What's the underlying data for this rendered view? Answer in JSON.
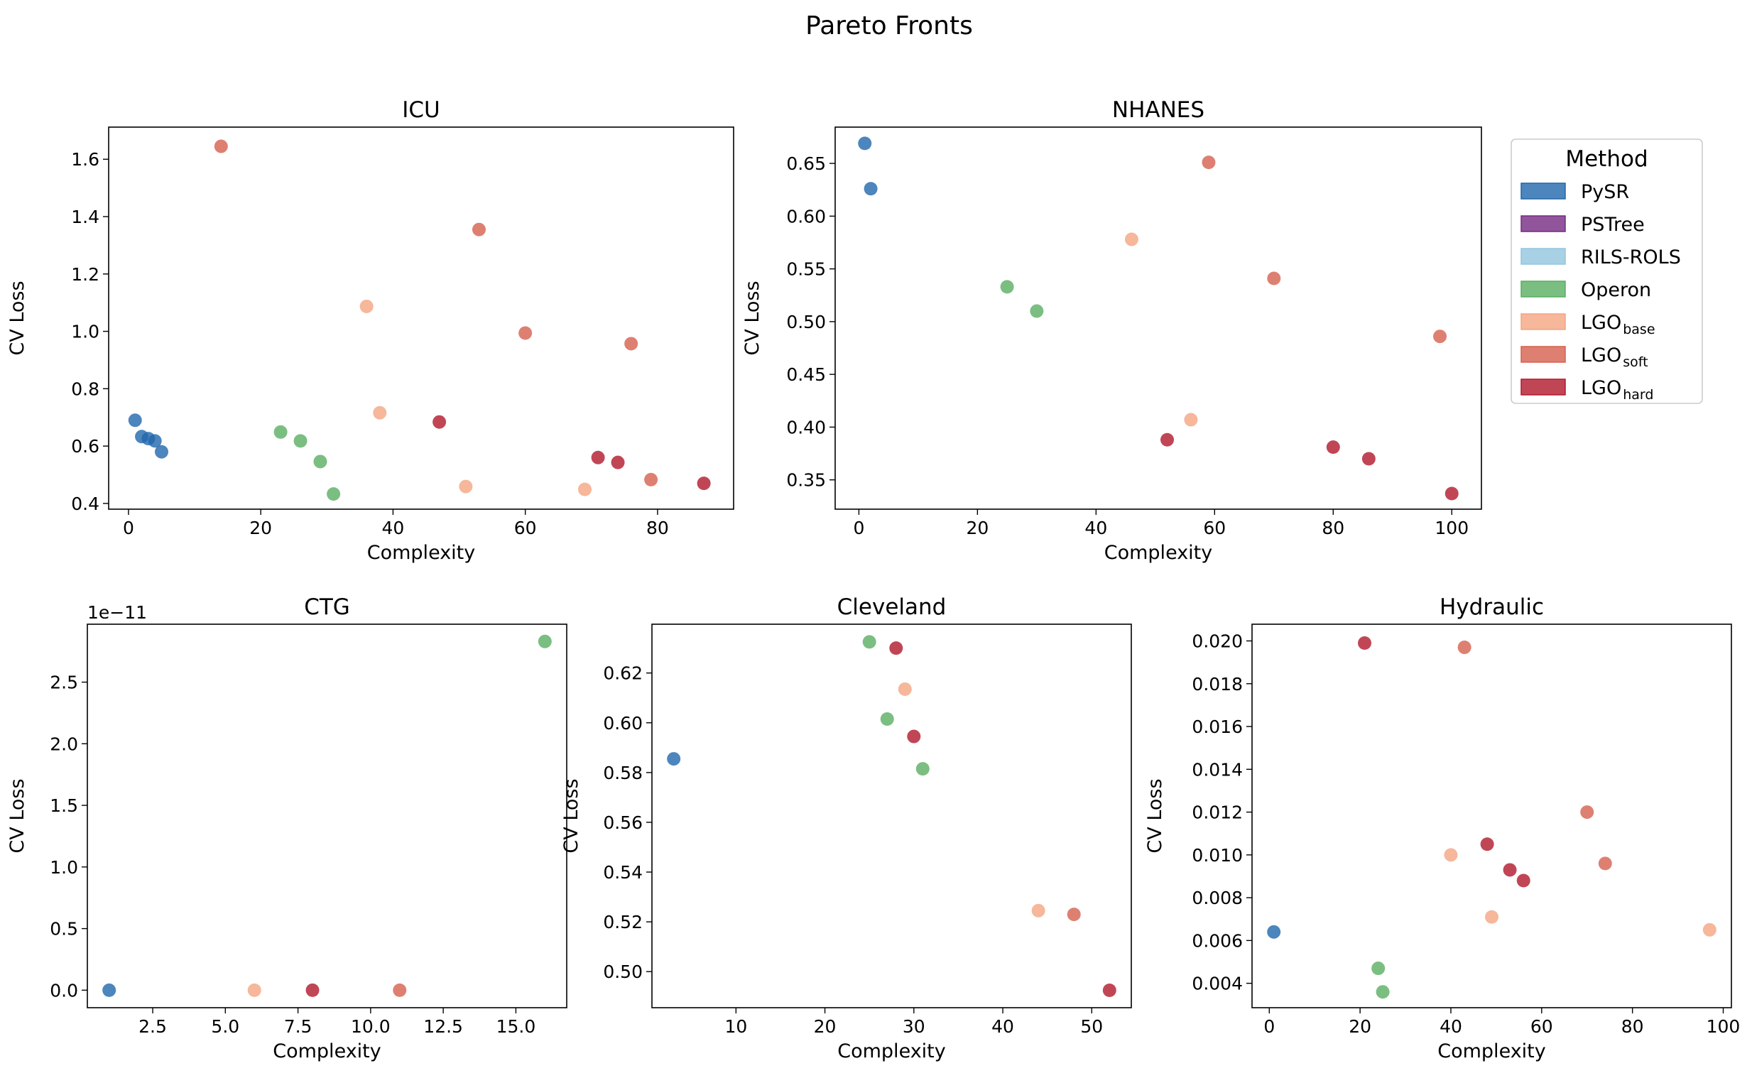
{
  "figure": {
    "title": "Pareto Fronts"
  },
  "legend": {
    "title": "Method",
    "placement": "right of NHANES panel",
    "entries": [
      {
        "key": "PySR",
        "base": "PySR",
        "sub": "",
        "color": "#2166ac"
      },
      {
        "key": "PSTree",
        "base": "PSTree",
        "sub": "",
        "color": "#762a83"
      },
      {
        "key": "RILS-ROLS",
        "base": "RILS-ROLS",
        "sub": "",
        "color": "#92c5de"
      },
      {
        "key": "Operon",
        "base": "Operon",
        "sub": "",
        "color": "#5aae61"
      },
      {
        "key": "LGO_base",
        "base": "LGO",
        "sub": "base",
        "color": "#f4a582"
      },
      {
        "key": "LGO_soft",
        "base": "LGO",
        "sub": "soft",
        "color": "#d6604d"
      },
      {
        "key": "LGO_hard",
        "base": "LGO",
        "sub": "hard",
        "color": "#b2182b"
      }
    ]
  },
  "chart_data": [
    {
      "type": "scatter",
      "title": "ICU",
      "xlabel": "Complexity",
      "ylabel": "CV Loss",
      "xlim": [
        -3,
        91.5
      ],
      "ylim": [
        0.38,
        1.712
      ],
      "xticks": [
        0,
        20,
        40,
        60,
        80
      ],
      "yticks": [
        0.4,
        0.6,
        0.8,
        1.0,
        1.2,
        1.4,
        1.6
      ],
      "yticklabels": [
        "0.4",
        "0.6",
        "0.8",
        "1.0",
        "1.2",
        "1.4",
        "1.6"
      ],
      "offset_text": "",
      "grid": false,
      "series": [
        {
          "name": "PySR",
          "points": [
            [
              1,
              0.69
            ],
            [
              2,
              0.633
            ],
            [
              3,
              0.626
            ],
            [
              4,
              0.618
            ],
            [
              5,
              0.58
            ]
          ]
        },
        {
          "name": "Operon",
          "points": [
            [
              23,
              0.649
            ],
            [
              26,
              0.618
            ],
            [
              29,
              0.546
            ],
            [
              31,
              0.433
            ]
          ]
        },
        {
          "name": "LGO_base",
          "points": [
            [
              36,
              1.087
            ],
            [
              38,
              0.716
            ],
            [
              51,
              0.459
            ],
            [
              69,
              0.449
            ]
          ]
        },
        {
          "name": "LGO_soft",
          "points": [
            [
              14,
              1.645
            ],
            [
              53,
              1.355
            ],
            [
              60,
              0.994
            ],
            [
              76,
              0.957
            ],
            [
              79,
              0.483
            ]
          ]
        },
        {
          "name": "LGO_hard",
          "points": [
            [
              47,
              0.684
            ],
            [
              71,
              0.56
            ],
            [
              74,
              0.543
            ],
            [
              87,
              0.47
            ]
          ]
        }
      ]
    },
    {
      "type": "scatter",
      "title": "NHANES",
      "xlabel": "Complexity",
      "ylabel": "CV Loss",
      "xlim": [
        -4,
        105
      ],
      "ylim": [
        0.3222,
        0.6844
      ],
      "xticks": [
        0,
        20,
        40,
        60,
        80,
        100
      ],
      "yticks": [
        0.35,
        0.4,
        0.45,
        0.5,
        0.55,
        0.6,
        0.65
      ],
      "yticklabels": [
        "0.35",
        "0.40",
        "0.45",
        "0.50",
        "0.55",
        "0.60",
        "0.65"
      ],
      "offset_text": "",
      "grid": false,
      "series": [
        {
          "name": "PySR",
          "points": [
            [
              1,
              0.669
            ],
            [
              2,
              0.626
            ]
          ]
        },
        {
          "name": "Operon",
          "points": [
            [
              25,
              0.533
            ],
            [
              30,
              0.51
            ]
          ]
        },
        {
          "name": "LGO_base",
          "points": [
            [
              46,
              0.578
            ],
            [
              56,
              0.407
            ]
          ]
        },
        {
          "name": "LGO_soft",
          "points": [
            [
              59,
              0.651
            ],
            [
              70,
              0.541
            ],
            [
              98,
              0.486
            ]
          ]
        },
        {
          "name": "LGO_hard",
          "points": [
            [
              52,
              0.388
            ],
            [
              80,
              0.381
            ],
            [
              86,
              0.37
            ],
            [
              100,
              0.337
            ]
          ]
        }
      ]
    },
    {
      "type": "scatter",
      "title": "CTG",
      "xlabel": "Complexity",
      "ylabel": "CV Loss",
      "xlim": [
        0.25,
        16.75
      ],
      "ylim": [
        -0.142,
        2.97
      ],
      "xticks": [
        2.5,
        5.0,
        7.5,
        10.0,
        12.5,
        15.0
      ],
      "xticklabels": [
        "2.5",
        "5.0",
        "7.5",
        "10.0",
        "12.5",
        "15.0"
      ],
      "yticks": [
        0.0,
        0.5,
        1.0,
        1.5,
        2.0,
        2.5
      ],
      "yticklabels": [
        "0.0",
        "0.5",
        "1.0",
        "1.5",
        "2.0",
        "2.5"
      ],
      "offset_text": "1e−11",
      "grid": false,
      "series": [
        {
          "name": "PySR",
          "points": [
            [
              1,
              0.0
            ]
          ]
        },
        {
          "name": "Operon",
          "points": [
            [
              16,
              2.83
            ]
          ]
        },
        {
          "name": "LGO_base",
          "points": [
            [
              6,
              0.0
            ]
          ]
        },
        {
          "name": "LGO_soft",
          "points": [
            [
              11,
              0.0
            ]
          ]
        },
        {
          "name": "LGO_hard",
          "points": [
            [
              8,
              0.0
            ]
          ]
        }
      ]
    },
    {
      "type": "scatter",
      "title": "Cleveland",
      "xlabel": "Complexity",
      "ylabel": "CV Loss",
      "xlim": [
        0.55,
        54.45
      ],
      "ylim": [
        0.4855,
        0.6396
      ],
      "xticks": [
        10,
        20,
        30,
        40,
        50
      ],
      "yticks": [
        0.5,
        0.52,
        0.54,
        0.56,
        0.58,
        0.6,
        0.62
      ],
      "yticklabels": [
        "0.50",
        "0.52",
        "0.54",
        "0.56",
        "0.58",
        "0.60",
        "0.62"
      ],
      "offset_text": "",
      "grid": false,
      "series": [
        {
          "name": "PySR",
          "points": [
            [
              3,
              0.5855
            ]
          ]
        },
        {
          "name": "Operon",
          "points": [
            [
              25,
              0.6325
            ],
            [
              27,
              0.6015
            ],
            [
              31,
              0.5815
            ]
          ]
        },
        {
          "name": "LGO_base",
          "points": [
            [
              29,
              0.6135
            ],
            [
              44,
              0.5245
            ]
          ]
        },
        {
          "name": "LGO_soft",
          "points": [
            [
              48,
              0.523
            ]
          ]
        },
        {
          "name": "LGO_hard",
          "points": [
            [
              28,
              0.63
            ],
            [
              30,
              0.5945
            ],
            [
              52,
              0.4925
            ]
          ]
        }
      ]
    },
    {
      "type": "scatter",
      "title": "Hydraulic",
      "xlabel": "Complexity",
      "ylabel": "CV Loss",
      "xlim": [
        -3.8,
        101.8
      ],
      "ylim": [
        0.00286,
        0.02078
      ],
      "xticks": [
        0,
        20,
        40,
        60,
        80,
        100
      ],
      "yticks": [
        0.004,
        0.006,
        0.008,
        0.01,
        0.012,
        0.014,
        0.016,
        0.018,
        0.02
      ],
      "yticklabels": [
        "0.004",
        "0.006",
        "0.008",
        "0.010",
        "0.012",
        "0.014",
        "0.016",
        "0.018",
        "0.020"
      ],
      "offset_text": "",
      "grid": false,
      "series": [
        {
          "name": "PySR",
          "points": [
            [
              1,
              0.0064
            ]
          ]
        },
        {
          "name": "Operon",
          "points": [
            [
              24,
              0.0047
            ],
            [
              25,
              0.0036
            ]
          ]
        },
        {
          "name": "LGO_base",
          "points": [
            [
              40,
              0.01
            ],
            [
              49,
              0.0071
            ],
            [
              97,
              0.0065
            ]
          ]
        },
        {
          "name": "LGO_soft",
          "points": [
            [
              43,
              0.0197
            ],
            [
              70,
              0.012
            ],
            [
              74,
              0.0096
            ]
          ]
        },
        {
          "name": "LGO_hard",
          "points": [
            [
              21,
              0.0199
            ],
            [
              48,
              0.0105
            ],
            [
              53,
              0.0093
            ],
            [
              56,
              0.0088
            ]
          ]
        }
      ]
    }
  ]
}
